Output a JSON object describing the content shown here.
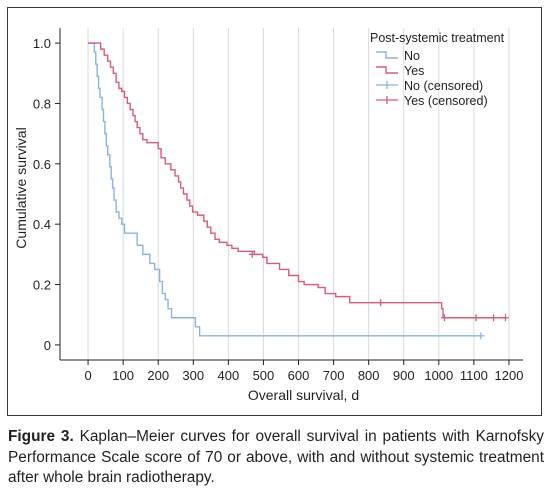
{
  "chart_data": {
    "type": "line",
    "subtype": "kaplan-meier step",
    "xlabel": "Overall survival, d",
    "ylabel": "Cumulative survival",
    "xlim": [
      -80,
      1240
    ],
    "ylim": [
      -0.05,
      1.05
    ],
    "x_ticks": [
      "0",
      "100",
      "200",
      "300",
      "400",
      "500",
      "600",
      "700",
      "800",
      "900",
      "1000",
      "1100",
      "1200"
    ],
    "y_ticks": [
      "0",
      "0.2",
      "0.4",
      "0.6",
      "0.8",
      "1.0"
    ],
    "x_tick_values": [
      0,
      100,
      200,
      300,
      400,
      500,
      600,
      700,
      800,
      900,
      1000,
      1100,
      1200
    ],
    "y_tick_values": [
      0,
      0.2,
      0.4,
      0.6,
      0.8,
      1.0
    ],
    "grid": true,
    "legend_title": "Post-systemic treatment",
    "legend_position": "top-right",
    "legend": [
      {
        "label": "No",
        "kind": "line",
        "color": "#8ab4dc"
      },
      {
        "label": "Yes",
        "kind": "line",
        "color": "#dc5a7a"
      },
      {
        "label": "No (censored)",
        "kind": "censor",
        "color": "#8ab4dc"
      },
      {
        "label": "Yes (censored)",
        "kind": "censor",
        "color": "#dc5a7a"
      }
    ],
    "series": [
      {
        "name": "No",
        "color": "#8ab4dc",
        "steps": [
          [
            0,
            1.0
          ],
          [
            18,
            0.97
          ],
          [
            22,
            0.93
          ],
          [
            26,
            0.89
          ],
          [
            30,
            0.85
          ],
          [
            34,
            0.82
          ],
          [
            40,
            0.78
          ],
          [
            44,
            0.74
          ],
          [
            48,
            0.7
          ],
          [
            52,
            0.66
          ],
          [
            56,
            0.63
          ],
          [
            62,
            0.59
          ],
          [
            66,
            0.55
          ],
          [
            70,
            0.52
          ],
          [
            74,
            0.48
          ],
          [
            80,
            0.44
          ],
          [
            88,
            0.42
          ],
          [
            96,
            0.4
          ],
          [
            104,
            0.37
          ],
          [
            140,
            0.33
          ],
          [
            156,
            0.3
          ],
          [
            176,
            0.27
          ],
          [
            190,
            0.25
          ],
          [
            204,
            0.21
          ],
          [
            212,
            0.17
          ],
          [
            220,
            0.15
          ],
          [
            228,
            0.12
          ],
          [
            238,
            0.09
          ],
          [
            306,
            0.06
          ],
          [
            318,
            0.03
          ],
          [
            1120,
            0.03
          ]
        ],
        "censored": [
          [
            1120,
            0.03
          ]
        ]
      },
      {
        "name": "Yes",
        "color": "#dc5a7a",
        "steps": [
          [
            0,
            1.0
          ],
          [
            36,
            0.98
          ],
          [
            46,
            0.96
          ],
          [
            56,
            0.94
          ],
          [
            64,
            0.92
          ],
          [
            72,
            0.9
          ],
          [
            80,
            0.87
          ],
          [
            88,
            0.85
          ],
          [
            96,
            0.84
          ],
          [
            104,
            0.82
          ],
          [
            112,
            0.8
          ],
          [
            120,
            0.78
          ],
          [
            128,
            0.76
          ],
          [
            134,
            0.74
          ],
          [
            140,
            0.72
          ],
          [
            148,
            0.7
          ],
          [
            156,
            0.68
          ],
          [
            168,
            0.67
          ],
          [
            200,
            0.65
          ],
          [
            208,
            0.62
          ],
          [
            220,
            0.6
          ],
          [
            236,
            0.58
          ],
          [
            248,
            0.56
          ],
          [
            258,
            0.54
          ],
          [
            264,
            0.52
          ],
          [
            272,
            0.5
          ],
          [
            282,
            0.48
          ],
          [
            290,
            0.46
          ],
          [
            298,
            0.44
          ],
          [
            312,
            0.43
          ],
          [
            330,
            0.41
          ],
          [
            340,
            0.39
          ],
          [
            350,
            0.37
          ],
          [
            362,
            0.35
          ],
          [
            374,
            0.34
          ],
          [
            396,
            0.33
          ],
          [
            410,
            0.32
          ],
          [
            428,
            0.31
          ],
          [
            474,
            0.3
          ],
          [
            498,
            0.29
          ],
          [
            510,
            0.27
          ],
          [
            546,
            0.25
          ],
          [
            572,
            0.23
          ],
          [
            600,
            0.21
          ],
          [
            616,
            0.2
          ],
          [
            656,
            0.19
          ],
          [
            676,
            0.17
          ],
          [
            706,
            0.16
          ],
          [
            746,
            0.14
          ],
          [
            1008,
            0.12
          ],
          [
            1012,
            0.09
          ],
          [
            1190,
            0.09
          ]
        ],
        "censored": [
          [
            468,
            0.3
          ],
          [
            834,
            0.14
          ],
          [
            1016,
            0.09
          ],
          [
            1106,
            0.09
          ],
          [
            1156,
            0.09
          ],
          [
            1190,
            0.09
          ]
        ]
      }
    ]
  },
  "caption": {
    "label": "Figure 3.",
    "text": " Kaplan–Meier curves for overall survival in patients with Karnofsky Performance Scale score of 70 or above, with and without systemic treatment after whole brain radiotherapy."
  }
}
